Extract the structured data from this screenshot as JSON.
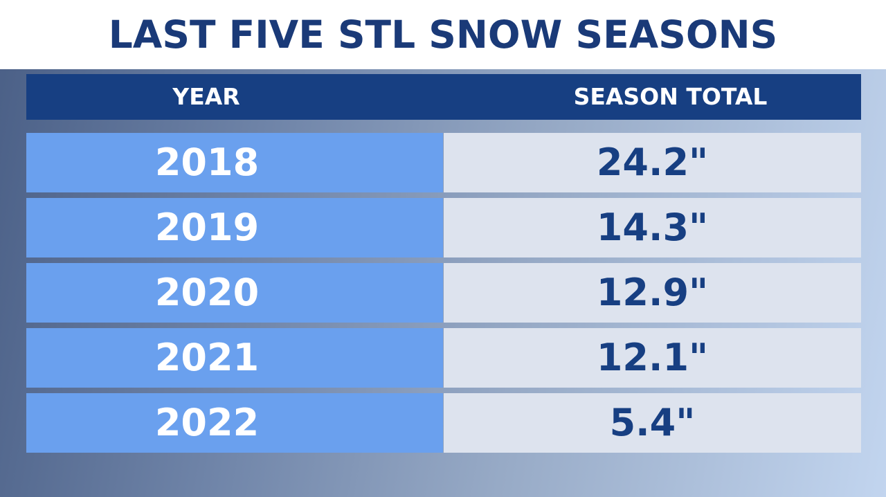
{
  "chart_data": {
    "type": "table",
    "title": "LAST FIVE STL SNOW SEASONS",
    "columns": [
      "YEAR",
      "SEASON TOTAL"
    ],
    "rows": [
      {
        "year": "2018",
        "total": "24.2\"",
        "value": 24.2
      },
      {
        "year": "2019",
        "total": "14.3\"",
        "value": 14.3
      },
      {
        "year": "2020",
        "total": "12.9\"",
        "value": 12.9
      },
      {
        "year": "2021",
        "total": "12.1\"",
        "value": 12.1
      },
      {
        "year": "2022",
        "total": "5.4\"",
        "value": 5.4
      }
    ]
  },
  "colors": {
    "title_text": "#1a3a78",
    "header_bg": "#173f82",
    "year_cell_bg": "#6aa0ee",
    "total_cell_bg": "#dde3ee"
  }
}
